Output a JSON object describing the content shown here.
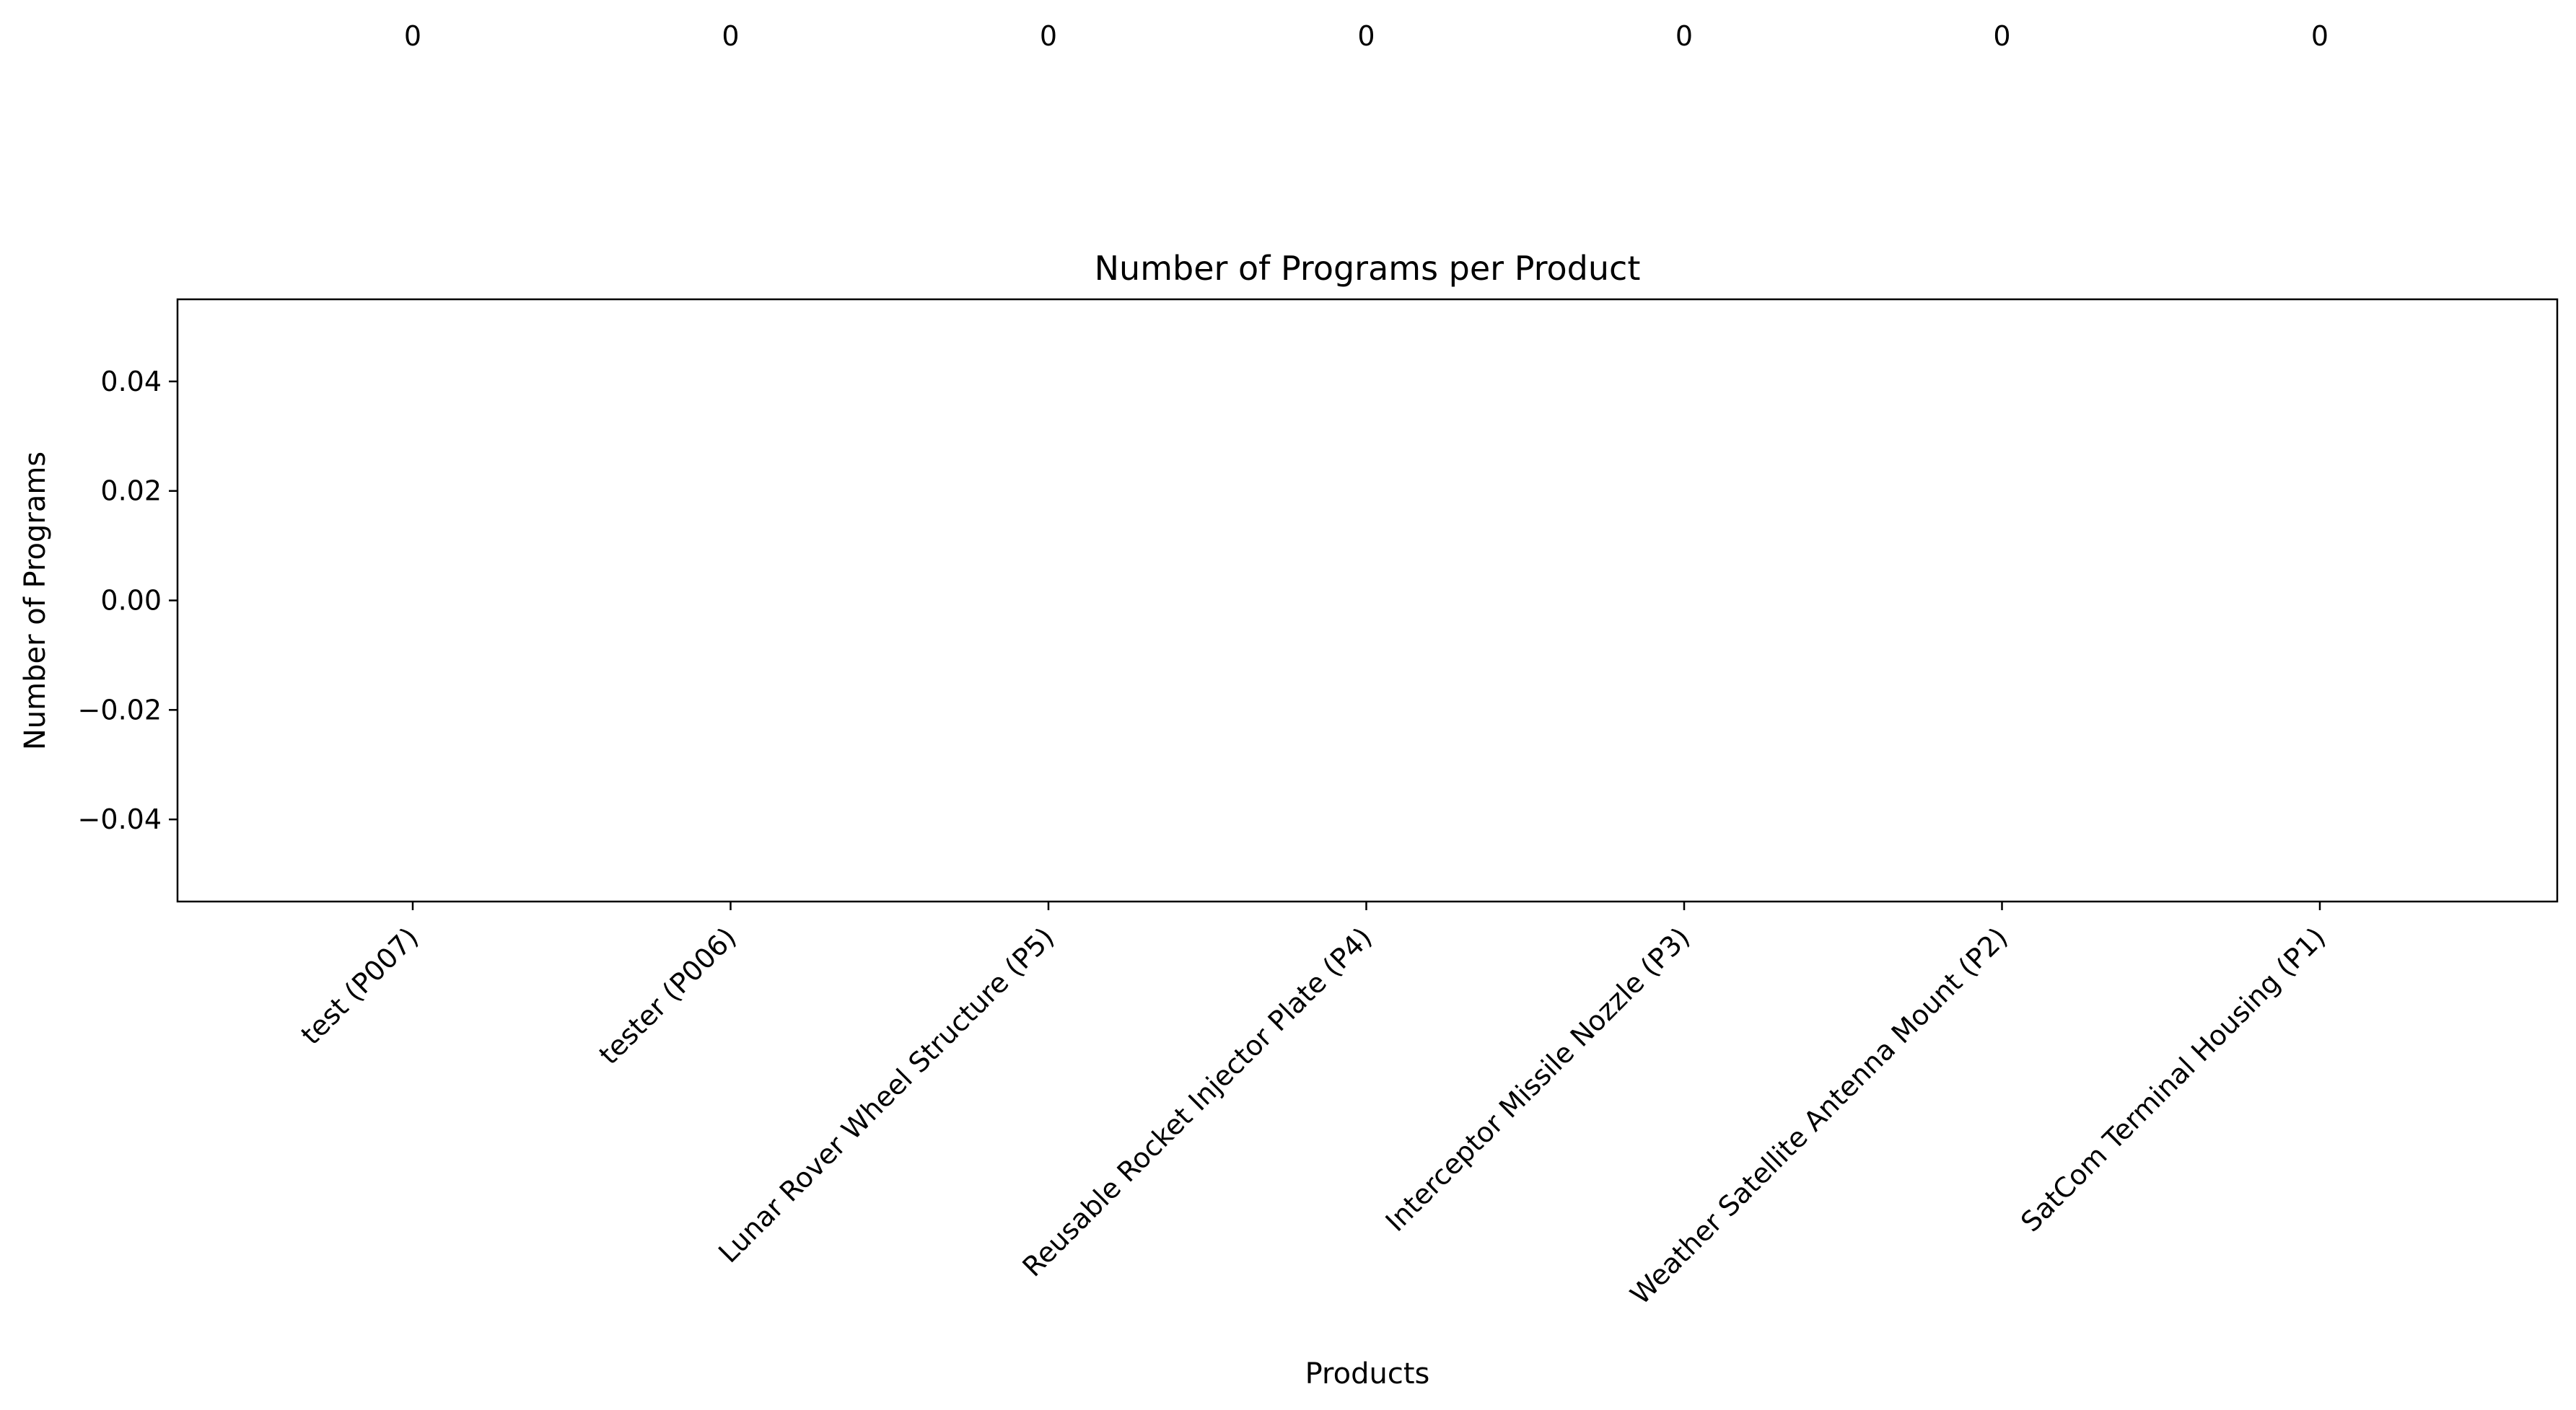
{
  "chart_data": {
    "type": "bar",
    "title": "Number of Programs per Product",
    "xlabel": "Products",
    "ylabel": "Number of Programs",
    "categories": [
      "test (P007)",
      "tester (P006)",
      "Lunar Rover Wheel Structure (P5)",
      "Reusable Rocket Injector Plate (P4)",
      "Interceptor Missile Nozzle (P3)",
      "Weather Satellite Antenna Mount (P2)",
      "SatCom Terminal Housing (P1)"
    ],
    "values": [
      0,
      0,
      0,
      0,
      0,
      0,
      0
    ],
    "data_labels": [
      "0",
      "0",
      "0",
      "0",
      "0",
      "0",
      "0"
    ],
    "ylim": [
      -0.055,
      0.055
    ],
    "yticks": [
      -0.04,
      -0.02,
      0.0,
      0.02,
      0.04
    ],
    "ytick_labels": [
      "−0.04",
      "−0.02",
      "0.00",
      "0.02",
      "0.04"
    ],
    "grid": false,
    "legend": "none",
    "colors": {
      "axis": "#000000",
      "bar": "#1f77b4",
      "background": "#ffffff"
    }
  }
}
